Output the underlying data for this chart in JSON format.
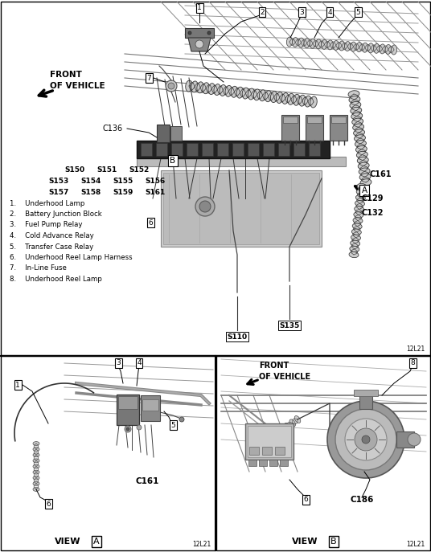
{
  "bg_color": "#ffffff",
  "figsize": [
    5.36,
    6.87
  ],
  "dpi": 100,
  "legend_items": [
    "1.    Underhood Lamp",
    "2.    Battery Junction Block",
    "3.    Fuel Pump Relay",
    "4.    Cold Advance Relay",
    "5.    Transfer Case Relay",
    "6.    Underhood Reel Lamp Harness",
    "7.    In-Line Fuse",
    "8.    Underhood Reel Lamp"
  ],
  "code_ref": "12L21",
  "line_color": "#000000",
  "gray1": "#888888",
  "gray2": "#aaaaaa",
  "gray3": "#cccccc",
  "gray4": "#555555",
  "gray5": "#333333",
  "gray6": "#666666",
  "gray7": "#bbbbbb",
  "gray8": "#dddddd",
  "gray9": "#444444"
}
